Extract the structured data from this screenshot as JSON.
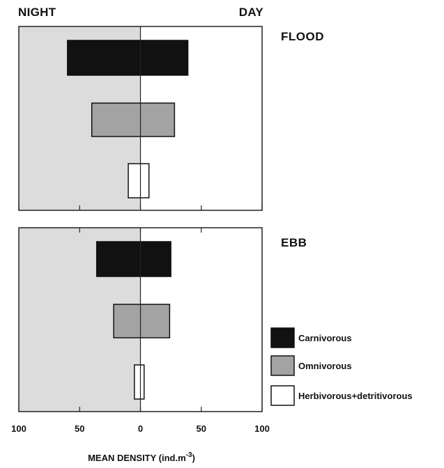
{
  "header": {
    "left": "NIGHT",
    "right": "DAY"
  },
  "axis": {
    "title": "MEAN DENSITY (ind.m",
    "title_sup": "-3",
    "title_close": ")",
    "ticks": [
      "100",
      "50",
      "0",
      "50",
      "100"
    ]
  },
  "colors": {
    "night_background": "#dcdcdc",
    "day_background": "#ffffff",
    "carnivorous": "#111111",
    "omnivorous": "#a3a3a3",
    "herbivorous": "#ffffff",
    "axis": "#222222"
  },
  "legend": [
    {
      "label": "Carnivorous",
      "color_key": "carnivorous"
    },
    {
      "label": "Omnivorous",
      "color_key": "omnivorous"
    },
    {
      "label": "Herbivorous+detritivorous",
      "color_key": "herbivorous"
    }
  ],
  "chart_data": {
    "type": "bar",
    "orientation": "horizontal-diverging",
    "xlabel": "MEAN DENSITY (ind.m -3)",
    "xlim": [
      -100,
      100
    ],
    "x_tick_values": [
      -100,
      -50,
      0,
      50,
      100
    ],
    "x_tick_labels": [
      "100",
      "50",
      "0",
      "50",
      "100"
    ],
    "negative_side": "NIGHT",
    "positive_side": "DAY",
    "categories": [
      "Carnivorous",
      "Omnivorous",
      "Herbivorous+detritivorous"
    ],
    "panels": [
      {
        "name": "FLOOD",
        "series": [
          {
            "name": "NIGHT",
            "values": [
              60,
              40,
              10
            ]
          },
          {
            "name": "DAY",
            "values": [
              39,
              28,
              7
            ]
          }
        ]
      },
      {
        "name": "EBB",
        "series": [
          {
            "name": "NIGHT",
            "values": [
              36,
              22,
              5
            ]
          },
          {
            "name": "DAY",
            "values": [
              25,
              24,
              3
            ]
          }
        ]
      }
    ],
    "grid": false,
    "legend_position": "right"
  }
}
